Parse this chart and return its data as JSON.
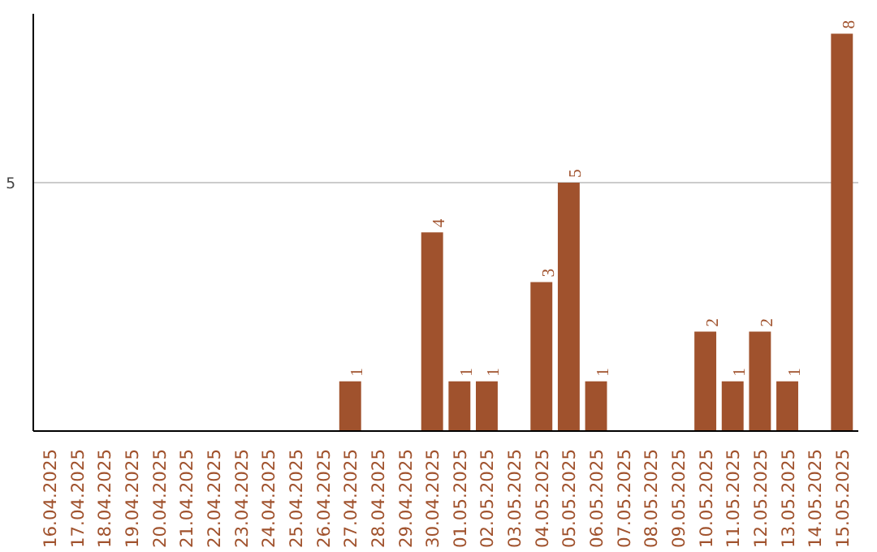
{
  "chart_data": {
    "type": "bar",
    "categories": [
      "16.04.2025",
      "17.04.2025",
      "18.04.2025",
      "19.04.2025",
      "20.04.2025",
      "21.04.2025",
      "22.04.2025",
      "23.04.2025",
      "24.04.2025",
      "25.04.2025",
      "26.04.2025",
      "27.04.2025",
      "28.04.2025",
      "29.04.2025",
      "30.04.2025",
      "01.05.2025",
      "02.05.2025",
      "03.05.2025",
      "04.05.2025",
      "05.05.2025",
      "06.05.2025",
      "07.05.2025",
      "08.05.2025",
      "09.05.2025",
      "10.05.2025",
      "11.05.2025",
      "12.05.2025",
      "13.05.2025",
      "14.05.2025",
      "15.05.2025"
    ],
    "values": [
      0,
      0,
      0,
      0,
      0,
      0,
      0,
      0,
      0,
      0,
      0,
      1,
      0,
      0,
      4,
      1,
      1,
      0,
      3,
      5,
      1,
      0,
      0,
      0,
      2,
      1,
      2,
      1,
      0,
      8
    ],
    "value_labels": [
      null,
      null,
      null,
      null,
      null,
      null,
      null,
      null,
      null,
      null,
      null,
      "1",
      null,
      null,
      "4",
      "1",
      "1",
      null,
      "3",
      "5",
      "1",
      null,
      null,
      null,
      "2",
      "1",
      "2",
      "1",
      null,
      "8"
    ],
    "color": "#a0522d",
    "ylim": [
      0,
      8.4
    ],
    "yticks": [
      5
    ],
    "grid": "y"
  }
}
